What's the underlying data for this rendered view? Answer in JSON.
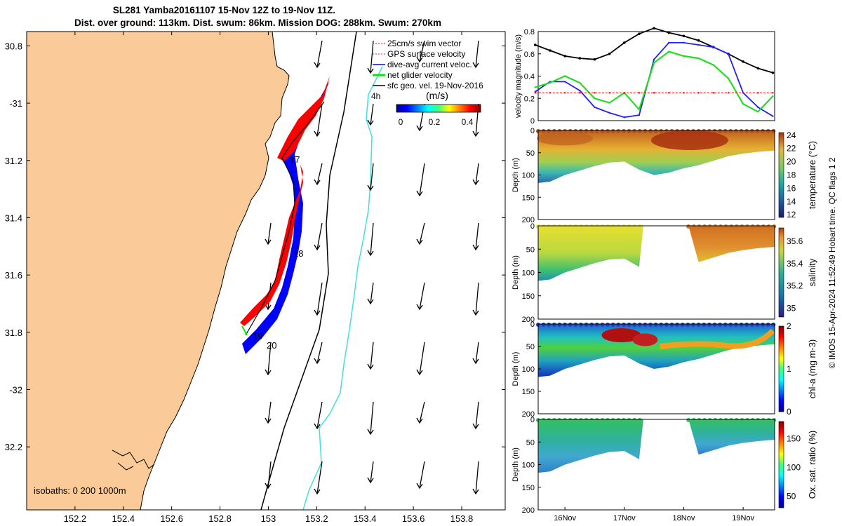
{
  "header": {
    "title_line1": "SL281 Yamba20161107 15-Nov 12Z to 19-Nov 11Z.",
    "title_line2": "Dist. over ground: 113km. Dist. swum: 86km. Mission DOG: 288km. Swum: 270km"
  },
  "credit": "© IMOS 15-Apr-2024 11:52:49 Hobart time. QC flags 1  2",
  "map": {
    "xticks": [
      152.2,
      152.4,
      152.6,
      152.8,
      153,
      153.2,
      153.4,
      153.6,
      153.8
    ],
    "xtick_labels": [
      "152.2",
      "152.4",
      "152.6",
      "152.8",
      "153",
      "153.2",
      "153.4",
      "153.6",
      "153.8"
    ],
    "yticks": [
      30.8,
      31,
      31.2,
      31.4,
      31.6,
      31.8,
      32,
      32.2
    ],
    "ytick_labels": [
      "30.8",
      "-31",
      "31.2",
      "31.4",
      "31.6",
      "31.8",
      "-32",
      "32.2"
    ],
    "legend": [
      {
        "label": "25cm/s swim vector",
        "color": "#ff0000"
      },
      {
        "label": "GPS surface velocity",
        "color": "#ff00ff"
      },
      {
        "label": "dive-avg current veloc.",
        "color": "#0000ff"
      },
      {
        "label": "net glider velocity",
        "color": "#00ee00"
      },
      {
        "label": "sfc geo. vel. 19-Nov-2016",
        "color": "#000000"
      }
    ],
    "colorbar": {
      "label": "(m/s)",
      "ticks": [
        "0",
        "0.2",
        "0.4"
      ],
      "extra_label": "4h"
    },
    "day_labels": [
      "17",
      "18",
      "19",
      "20"
    ],
    "isobaths_label": "isobaths: 0   200  1000m",
    "colors": {
      "land": "#facb98",
      "sea": "#ffffff",
      "shelf_line": "#000000",
      "isobath_1000": "#40e0e0"
    }
  },
  "chart_data": [
    {
      "type": "line",
      "title": "",
      "xlabel": "",
      "ylabel": "velocity magnitude (m/s)",
      "ylim": [
        0,
        0.8
      ],
      "yticks": [
        "0",
        "0.2",
        "0.4",
        "0.6",
        "0.8"
      ],
      "x": [
        15.5,
        15.75,
        16,
        16.25,
        16.5,
        16.75,
        17,
        17.25,
        17.5,
        17.75,
        18,
        18.25,
        18.5,
        18.75,
        19,
        19.25,
        19.5
      ],
      "series": [
        {
          "name": "sfc geo. vel.",
          "color": "#000000",
          "values": [
            0.68,
            0.63,
            0.58,
            0.56,
            0.55,
            0.6,
            0.7,
            0.78,
            0.83,
            0.79,
            0.76,
            0.72,
            0.66,
            0.6,
            0.53,
            0.47,
            0.43
          ]
        },
        {
          "name": "dive-avg current",
          "color": "#2020ff",
          "values": [
            0.26,
            0.35,
            0.35,
            0.27,
            0.12,
            0.07,
            0.03,
            0.05,
            0.55,
            0.7,
            0.7,
            0.68,
            0.66,
            0.6,
            0.25,
            0.12,
            0.04
          ]
        },
        {
          "name": "net glider velocity",
          "color": "#22dd22",
          "values": [
            0.3,
            0.34,
            0.4,
            0.34,
            0.2,
            0.16,
            0.25,
            0.1,
            0.52,
            0.62,
            0.58,
            0.56,
            0.5,
            0.38,
            0.15,
            0.08,
            0.22
          ]
        },
        {
          "name": "swim speed",
          "color": "#ff0000",
          "values": [
            0.25,
            0.25,
            0.25,
            0.25,
            0.25,
            0.25,
            0.25,
            0.25,
            0.25,
            0.25,
            0.25,
            0.25,
            0.25,
            0.25,
            0.25,
            0.25,
            0.25
          ]
        }
      ]
    },
    {
      "type": "heatmap",
      "ylabel": "Depth (m)",
      "ylim": [
        0,
        200
      ],
      "yticks": [
        "0",
        "50",
        "100",
        "150",
        "200"
      ],
      "colorbar_label": "temperature (°C)",
      "colorbar_ticks": [
        "12",
        "14",
        "16",
        "18",
        "20",
        "22",
        "24"
      ],
      "bottom_depth_m": [
        115,
        110,
        95,
        80,
        72,
        70,
        68,
        90,
        95,
        80,
        78,
        72,
        65,
        55,
        50,
        47,
        45
      ],
      "values_near_surface_C": [
        22.5,
        22.5,
        22,
        22,
        21.5,
        21,
        21,
        23.5,
        24,
        24,
        24,
        23.5,
        23,
        22.5,
        22,
        22,
        22
      ]
    },
    {
      "type": "heatmap",
      "ylabel": "Depth (m)",
      "ylim": [
        0,
        200
      ],
      "yticks": [
        "0",
        "50",
        "100",
        "150",
        "200"
      ],
      "colorbar_label": "salinity",
      "colorbar_ticks": [
        "35",
        "35.2",
        "35.4",
        "35.6"
      ],
      "gap_days": [
        17.3,
        18.05
      ],
      "values_near_surface": [
        35.4,
        35.4,
        35.45,
        35.45,
        35.45,
        35.4,
        35.4,
        null,
        null,
        null,
        35.6,
        35.6,
        35.6,
        35.65,
        35.6,
        35.6,
        35.55
      ]
    },
    {
      "type": "heatmap",
      "ylabel": "Depth (m)",
      "ylim": [
        0,
        200
      ],
      "yticks": [
        "0",
        "50",
        "100",
        "150",
        "200"
      ],
      "colorbar_label": "chl-a (mg m-3)",
      "colorbar_ticks": [
        "0",
        "1",
        "2"
      ],
      "max_layer_depth_m": [
        35,
        40,
        40,
        38,
        35,
        30,
        35,
        50,
        55,
        55,
        55,
        50,
        45,
        45,
        40,
        30,
        20
      ]
    },
    {
      "type": "heatmap",
      "ylabel": "Depth (m)",
      "ylim": [
        0,
        200
      ],
      "yticks": [
        "0",
        "50",
        "100",
        "150",
        "200"
      ],
      "xtick_labels": [
        "16Nov",
        "17Nov",
        "18Nov",
        "19Nov"
      ],
      "colorbar_label": "Ox. sat. ratio (%)",
      "colorbar_ticks": [
        "50",
        "100",
        "150"
      ],
      "gap_days": [
        17.3,
        18.05
      ],
      "values_near_surface_pct": [
        105,
        105,
        105,
        105,
        105,
        105,
        105,
        null,
        null,
        null,
        110,
        110,
        110,
        110,
        112,
        112,
        115
      ]
    }
  ]
}
